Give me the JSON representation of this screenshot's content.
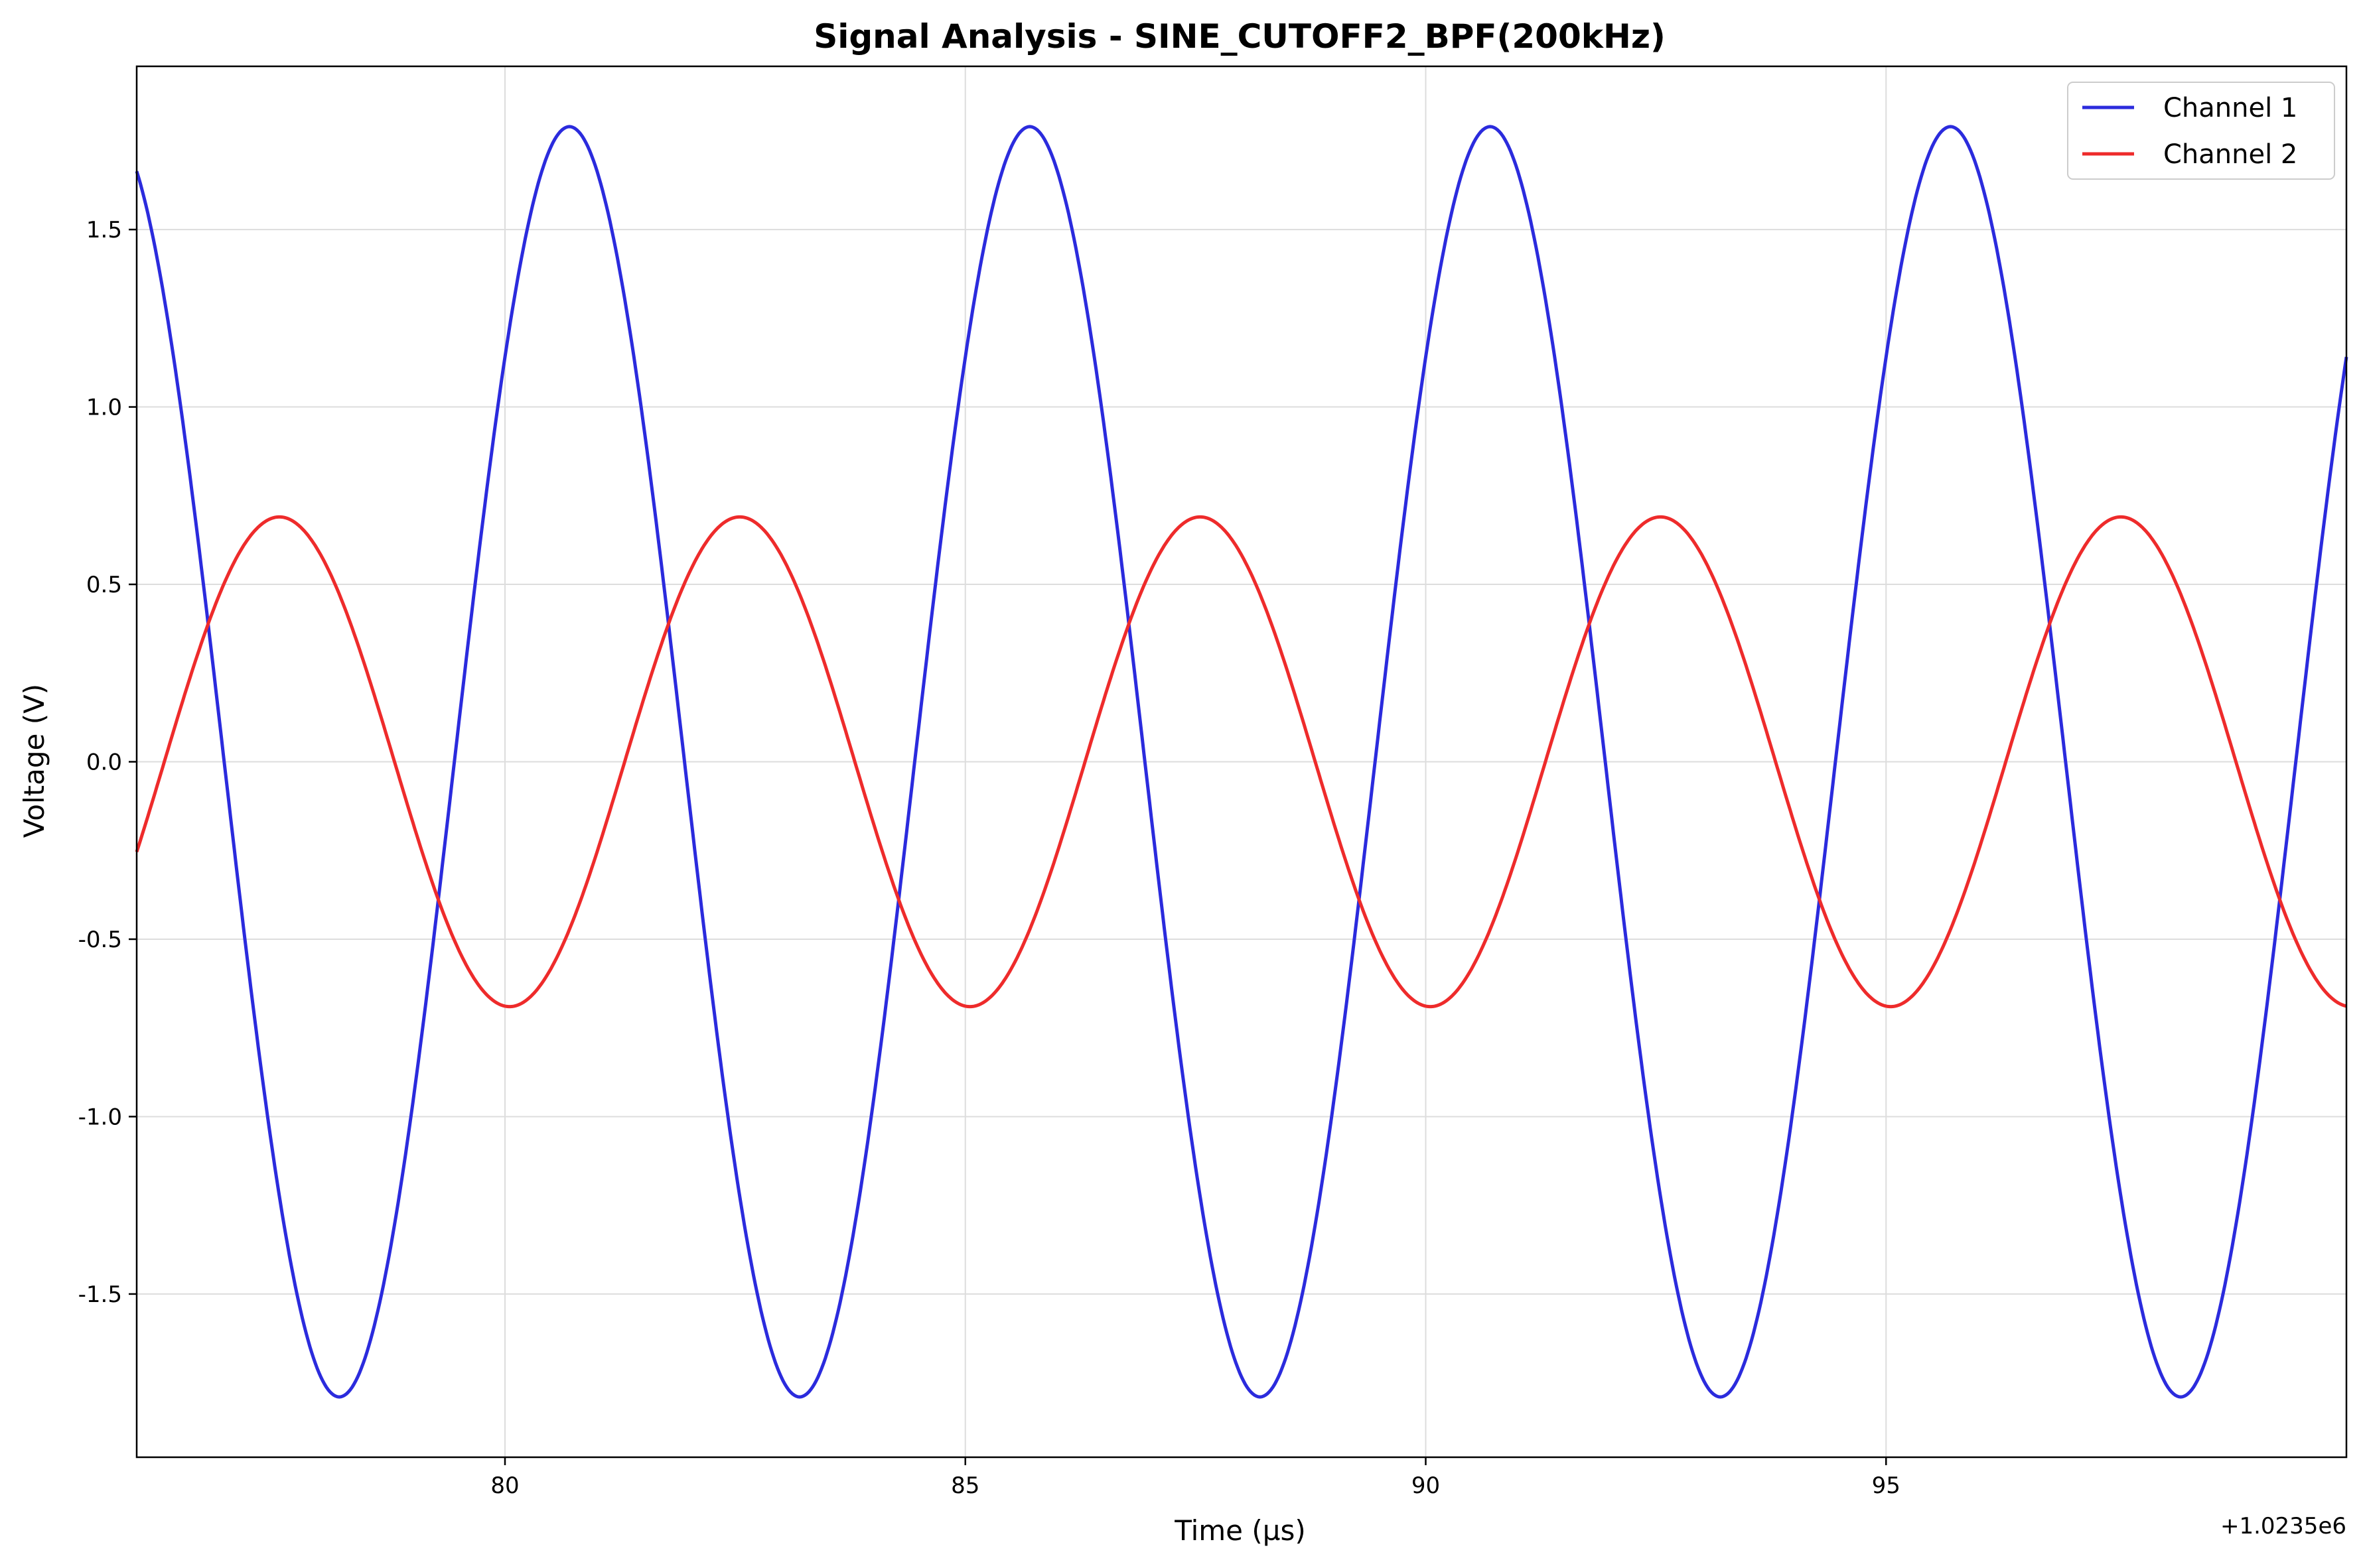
{
  "chart_data": {
    "type": "line",
    "title": "Signal Analysis - SINE_CUTOFF2_BPF(200kHz)",
    "xlabel": "Time (µs)",
    "ylabel": "Voltage (V)",
    "x_offset_label": "+1.0235e6",
    "xlim": [
      76.0,
      100.0
    ],
    "ylim": [
      -1.96,
      1.96
    ],
    "x_ticks": [
      80,
      85,
      90,
      95
    ],
    "x_tick_labels": [
      "80",
      "85",
      "90",
      "95"
    ],
    "y_ticks": [
      1.5,
      1.0,
      0.5,
      0.0,
      -0.5,
      -1.0,
      -1.5
    ],
    "y_tick_labels": [
      "1.5",
      "1.0",
      "0.5",
      "0.0",
      "-0.5",
      "-1.0",
      "-1.5"
    ],
    "grid": true,
    "legend_position": "top-right",
    "series": [
      {
        "name": "Channel 1",
        "color": "#2b2bdd",
        "amplitude": 1.79,
        "frequency_mhz": 0.2,
        "peak_time_us": 80.7
      },
      {
        "name": "Channel 2",
        "color": "#ee2b2b",
        "amplitude": 0.69,
        "frequency_mhz": 0.2,
        "peak_time_us": 77.55
      }
    ]
  }
}
